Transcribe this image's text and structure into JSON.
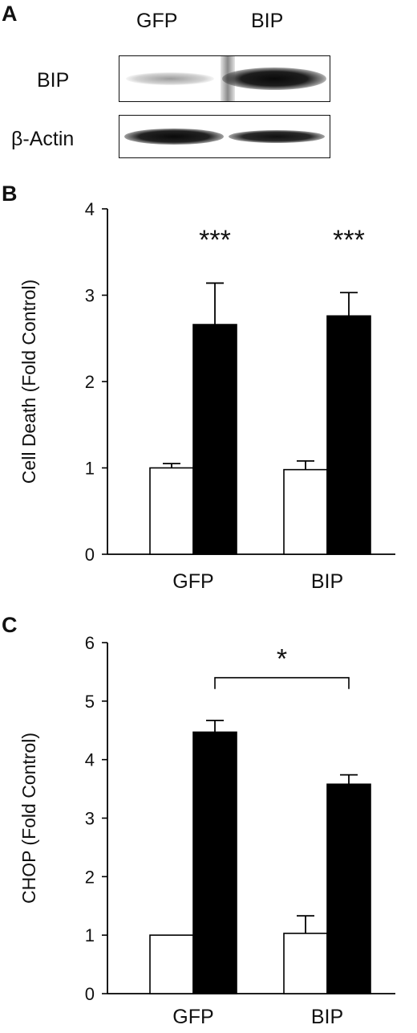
{
  "panels": {
    "a": "A",
    "b": "B",
    "c": "C"
  },
  "blot": {
    "lanes": [
      "GFP",
      "BIP"
    ],
    "rows": [
      "BIP",
      "β-Actin"
    ]
  },
  "chart_data": [
    {
      "type": "bar",
      "categories": [
        "GFP",
        "BIP"
      ],
      "series": [
        {
          "values": [
            1.0,
            0.98
          ],
          "errors": [
            0.05,
            0.1
          ],
          "color": "#ffffff"
        },
        {
          "values": [
            2.66,
            2.76
          ],
          "errors": [
            0.48,
            0.27
          ],
          "color": "#000000"
        }
      ],
      "significance": [
        "***",
        "***"
      ],
      "ylabel": "Cell Death (Fold Control)",
      "ylim": [
        0,
        4
      ],
      "yticks": [
        0,
        1,
        2,
        3,
        4
      ],
      "grid": false
    },
    {
      "type": "bar",
      "categories": [
        "GFP",
        "BIP"
      ],
      "series": [
        {
          "values": [
            1.0,
            1.03
          ],
          "errors": [
            0.0,
            0.3
          ],
          "color": "#ffffff"
        },
        {
          "values": [
            4.47,
            3.58
          ],
          "errors": [
            0.2,
            0.16
          ],
          "color": "#000000"
        }
      ],
      "comparison": {
        "label": "*"
      },
      "ylabel": "CHOP (Fold Control)",
      "ylim": [
        0,
        6
      ],
      "yticks": [
        0,
        1,
        2,
        3,
        4,
        5,
        6
      ],
      "grid": false
    }
  ]
}
